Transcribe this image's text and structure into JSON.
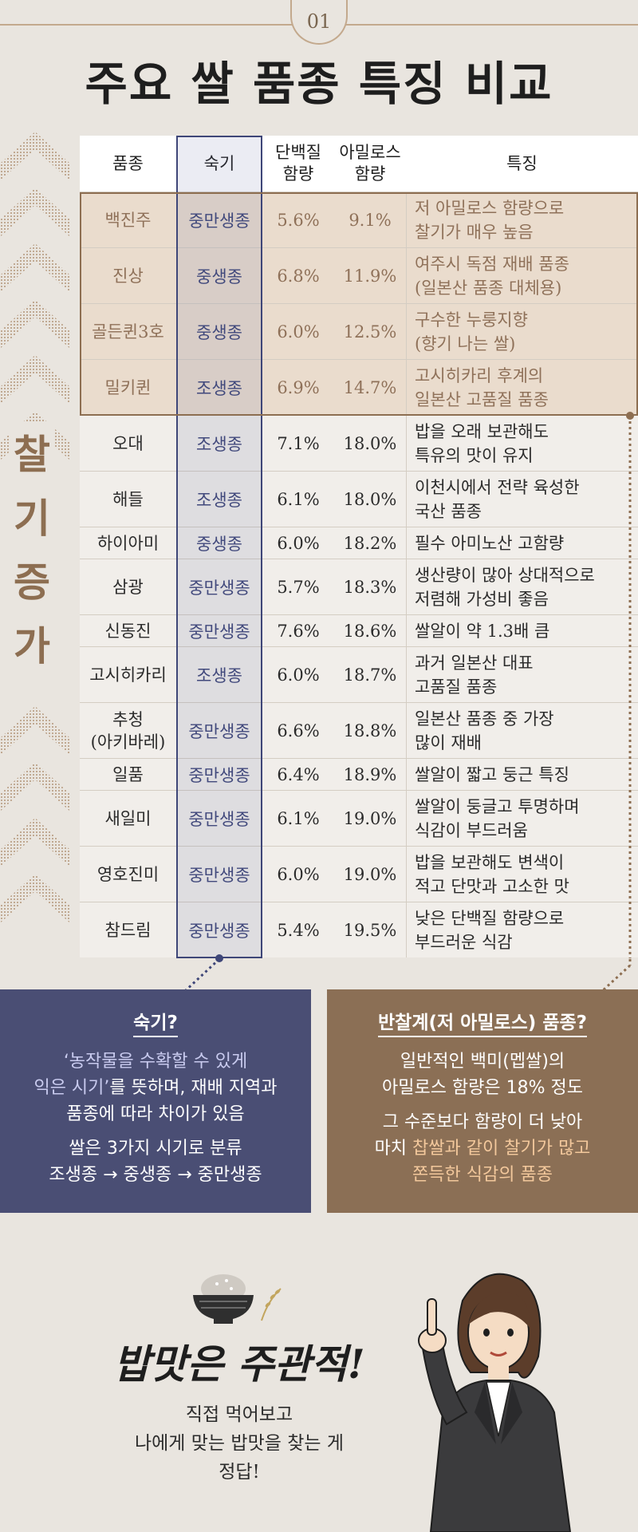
{
  "badge": "01",
  "title": "주요 쌀 품종 특징 비교",
  "side_label": [
    "찰",
    "기",
    "증",
    "가"
  ],
  "table": {
    "headers": [
      "품종",
      "숙기",
      "단백질\n함량",
      "아밀로스\n함량",
      "특징"
    ],
    "rows": [
      {
        "variety": "백진주",
        "maturity": "중만생종",
        "protein": "5.6%",
        "amylose": "9.1%",
        "feature": "저 아밀로스 함량으로\n찰기가 매우 높음"
      },
      {
        "variety": "진상",
        "maturity": "중생종",
        "protein": "6.8%",
        "amylose": "11.9%",
        "feature": "여주시 독점 재배 품종\n(일본산 품종 대체용)"
      },
      {
        "variety": "골든퀸3호",
        "maturity": "중생종",
        "protein": "6.0%",
        "amylose": "12.5%",
        "feature": "구수한 누룽지향\n(향기 나는 쌀)"
      },
      {
        "variety": "밀키퀸",
        "maturity": "조생종",
        "protein": "6.9%",
        "amylose": "14.7%",
        "feature": "고시히카리 후계의\n일본산 고품질 품종"
      },
      {
        "variety": "오대",
        "maturity": "조생종",
        "protein": "7.1%",
        "amylose": "18.0%",
        "feature": "밥을 오래 보관해도\n특유의 맛이 유지"
      },
      {
        "variety": "해들",
        "maturity": "조생종",
        "protein": "6.1%",
        "amylose": "18.0%",
        "feature": "이천시에서 전략 육성한\n국산 품종"
      },
      {
        "variety": "하이아미",
        "maturity": "중생종",
        "protein": "6.0%",
        "amylose": "18.2%",
        "feature": "필수 아미노산 고함량"
      },
      {
        "variety": "삼광",
        "maturity": "중만생종",
        "protein": "5.7%",
        "amylose": "18.3%",
        "feature": "생산량이 많아 상대적으로\n저렴해 가성비 좋음"
      },
      {
        "variety": "신동진",
        "maturity": "중만생종",
        "protein": "7.6%",
        "amylose": "18.6%",
        "feature": "쌀알이 약 1.3배 큼"
      },
      {
        "variety": "고시히카리",
        "maturity": "조생종",
        "protein": "6.0%",
        "amylose": "18.7%",
        "feature": "과거 일본산 대표\n고품질 품종"
      },
      {
        "variety": "추청\n(아키바레)",
        "maturity": "중만생종",
        "protein": "6.6%",
        "amylose": "18.8%",
        "feature": "일본산 품종 중 가장\n많이 재배"
      },
      {
        "variety": "일품",
        "maturity": "중만생종",
        "protein": "6.4%",
        "amylose": "18.9%",
        "feature": "쌀알이 짧고 둥근 특징"
      },
      {
        "variety": "새일미",
        "maturity": "중만생종",
        "protein": "6.1%",
        "amylose": "19.0%",
        "feature": "쌀알이 둥글고 투명하며\n식감이 부드러움"
      },
      {
        "variety": "영호진미",
        "maturity": "중만생종",
        "protein": "6.0%",
        "amylose": "19.0%",
        "feature": "밥을 보관해도 변색이\n적고 단맛과 고소한 맛"
      },
      {
        "variety": "참드림",
        "maturity": "중만생종",
        "protein": "5.4%",
        "amylose": "19.5%",
        "feature": "낮은 단백질 함량으로\n부드러운 식감"
      }
    ]
  },
  "info_left": {
    "title": "숙기?",
    "line1a": "‘농작물을 수확할 수 있게",
    "line1b": "익은 시기’",
    "line1c": "를 뜻하며, 재배 지역과",
    "line1d": "품종에 따라 차이가 있음",
    "line2a": "쌀은 3가지 시기로 분류",
    "line2b": "조생종 → 중생종 → 중만생종"
  },
  "info_right": {
    "title": "반찰계(저 아밀로스) 품종?",
    "line1a": "일반적인 백미(멥쌀)의",
    "line1b": "아밀로스 함량은 18% 정도",
    "line2a": "그 수준보다 함량이 더 낮아",
    "line2b": "마치 ",
    "line2c": "찹쌀과 같이 찰기가 많고",
    "line2d": "쫀득한 식감의 품종"
  },
  "bottom": {
    "handwrite": "밥맛은 주관적!",
    "answer_1": "직접 먹어보고",
    "answer_2": "나에게 맞는 밥맛을 찾는 게",
    "answer_3": "정답!"
  },
  "colors": {
    "background": "#e9e5df",
    "accent_tan": "#8d6e51",
    "accent_navy": "#3e4678",
    "box_navy": "#4a4e74",
    "box_brown": "#8b6f55",
    "highlight_rows": "#eadccd"
  }
}
